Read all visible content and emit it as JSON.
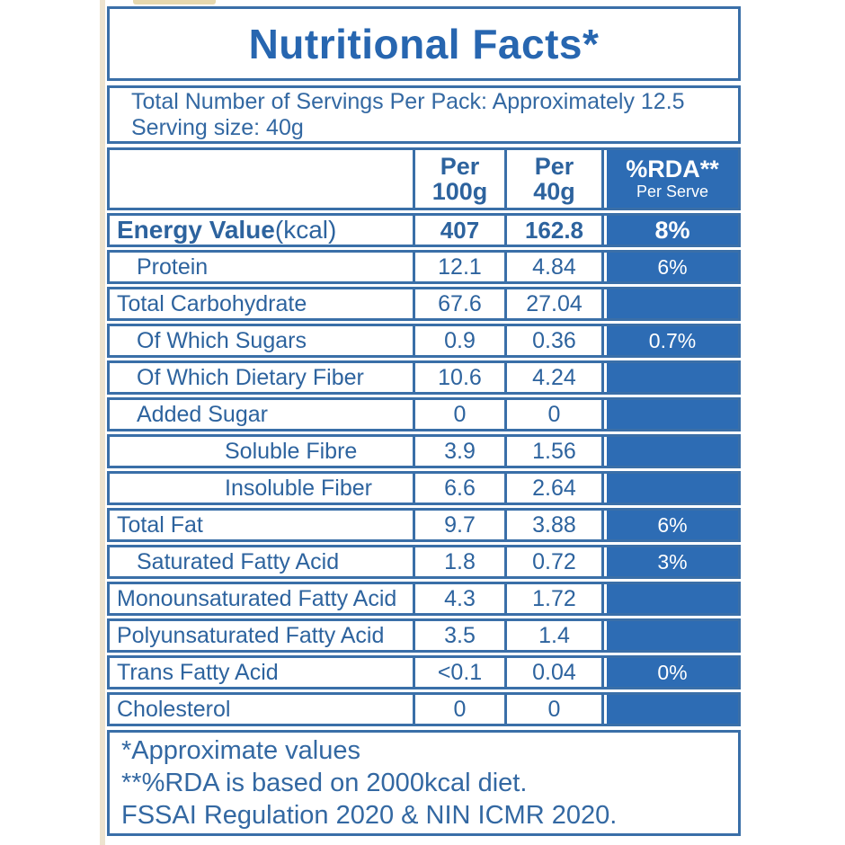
{
  "title": "Nutritional Facts*",
  "serving_info": {
    "line1": "Total Number of Servings Per Pack: Approximately 12.5",
    "line2": "Serving size: 40g"
  },
  "table": {
    "header": {
      "per100_line1": "Per",
      "per100_line2": "100g",
      "per40_line1": "Per",
      "per40_line2": "40g",
      "rda_line1": "%RDA**",
      "rda_line2": "Per Serve"
    },
    "rows": [
      {
        "label": "Energy Value",
        "suffix": "(kcal)",
        "per100": "407",
        "per40": "162.8",
        "rda": "8%",
        "bold": true,
        "indent": 0
      },
      {
        "label": "Protein",
        "per100": "12.1",
        "per40": "4.84",
        "rda": "6%",
        "bold": false,
        "indent": 1
      },
      {
        "label": "Total Carbohydrate",
        "per100": "67.6",
        "per40": "27.04",
        "rda": "",
        "bold": false,
        "indent": 0
      },
      {
        "label": "Of Which Sugars",
        "per100": "0.9",
        "per40": "0.36",
        "rda": "0.7%",
        "bold": false,
        "indent": 1
      },
      {
        "label": "Of Which Dietary Fiber",
        "per100": "10.6",
        "per40": "4.24",
        "rda": "",
        "bold": false,
        "indent": 1
      },
      {
        "label": "Added Sugar",
        "per100": "0",
        "per40": "0",
        "rda": "",
        "bold": false,
        "indent": 1
      },
      {
        "label": "Soluble Fibre",
        "per100": "3.9",
        "per40": "1.56",
        "rda": "",
        "bold": false,
        "indent": 2
      },
      {
        "label": "Insoluble Fiber",
        "per100": "6.6",
        "per40": "2.64",
        "rda": "",
        "bold": false,
        "indent": 2
      },
      {
        "label": "Total Fat",
        "per100": "9.7",
        "per40": "3.88",
        "rda": "6%",
        "bold": false,
        "indent": 0
      },
      {
        "label": "Saturated Fatty Acid",
        "per100": "1.8",
        "per40": "0.72",
        "rda": "3%",
        "bold": false,
        "indent": 1
      },
      {
        "label": "Monounsaturated Fatty Acid",
        "per100": "4.3",
        "per40": "1.72",
        "rda": "",
        "bold": false,
        "indent": 0
      },
      {
        "label": "Polyunsaturated Fatty Acid",
        "per100": "3.5",
        "per40": "1.4",
        "rda": "",
        "bold": false,
        "indent": 0
      },
      {
        "label": "Trans Fatty Acid",
        "per100": "<0.1",
        "per40": "0.04",
        "rda": "0%",
        "bold": false,
        "indent": 0
      },
      {
        "label": "Cholesterol",
        "per100": "0",
        "per40": "0",
        "rda": "",
        "bold": false,
        "indent": 0
      }
    ]
  },
  "footnotes": {
    "line1": "*Approximate values",
    "line2": "**%RDA is based on 2000kcal diet.",
    "line3": "FSSAI Regulation 2020 & NIN ICMR 2020."
  },
  "colors": {
    "accent_blue_fill": "#2d6cb4",
    "border_blue": "#3a6fa8",
    "text_blue": "#2d639e",
    "rda_text_white": "#ffffff",
    "edge_strip_beige": "#ede3cf"
  }
}
